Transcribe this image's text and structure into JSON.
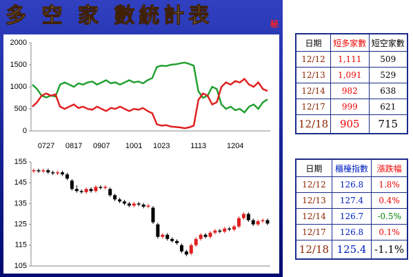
{
  "title": "多 空 家 數統計表",
  "badge": "秘",
  "chart_data": [
    {
      "type": "line",
      "categories": [
        null,
        null,
        null,
        "0727",
        null,
        null,
        null,
        null,
        null,
        "0817",
        null,
        null,
        null,
        null,
        null,
        "0907",
        null,
        null,
        null,
        null,
        null,
        null,
        "1001",
        null,
        null,
        null,
        null,
        null,
        "1023",
        null,
        null,
        null,
        null,
        null,
        null,
        null,
        "1113",
        null,
        null,
        null,
        null,
        null,
        null,
        null,
        "1204",
        null,
        null,
        null,
        null,
        null,
        null,
        null
      ],
      "series": [
        {
          "color": "#22a030",
          "values": [
            1050,
            950,
            800,
            760,
            800,
            780,
            1050,
            1100,
            1050,
            1000,
            1080,
            1050,
            1100,
            1120,
            1050,
            1100,
            1150,
            1080,
            1100,
            1050,
            1100,
            1150,
            1100,
            1120,
            1080,
            1150,
            1200,
            1450,
            1480,
            1470,
            1500,
            1510,
            1530,
            1550,
            1520,
            1480,
            900,
            750,
            800,
            1000,
            950,
            600,
            500,
            550,
            470,
            500,
            420,
            550,
            600,
            500,
            650,
            715
          ]
        },
        {
          "color": "#e02020",
          "values": [
            550,
            650,
            800,
            850,
            800,
            830,
            550,
            500,
            550,
            600,
            520,
            550,
            500,
            480,
            550,
            500,
            450,
            520,
            500,
            550,
            500,
            450,
            500,
            480,
            520,
            450,
            400,
            150,
            120,
            130,
            100,
            90,
            80,
            60,
            80,
            120,
            700,
            850,
            800,
            600,
            650,
            1000,
            1100,
            1050,
            1130,
            1100,
            1180,
            1050,
            1000,
            1100,
            950,
            905
          ]
        }
      ],
      "ylim": [
        0,
        2000
      ],
      "yticks": [
        0,
        500,
        1000,
        1500,
        2000
      ]
    },
    {
      "type": "candlestick",
      "up_color": "#e02020",
      "down_color": "#000000",
      "open": [
        150.5,
        151,
        150.5,
        151,
        150,
        149.5,
        150,
        149,
        146,
        142,
        141,
        140.5,
        142,
        141,
        143,
        142.5,
        142,
        139,
        137,
        136,
        135,
        134,
        135,
        134.5,
        133.5,
        133,
        125,
        119,
        120,
        118,
        117,
        115,
        112,
        111,
        115,
        118,
        120,
        119,
        121,
        122,
        121.5,
        123,
        122.5,
        124,
        128,
        130,
        127,
        125,
        126.5,
        127
      ],
      "high": [
        151.8,
        151.8,
        151.8,
        151.8,
        150.8,
        150.8,
        150.8,
        149.8,
        146.8,
        143.8,
        141.8,
        142.8,
        142.8,
        143.8,
        143.8,
        143.8,
        142.8,
        139.8,
        137.8,
        136.8,
        135.8,
        135.8,
        135.8,
        135.3,
        134.8,
        133.8,
        125.8,
        120.8,
        120.8,
        118.8,
        117.8,
        115.8,
        112.8,
        115.8,
        118.8,
        120.8,
        120.8,
        121.8,
        122.8,
        122.8,
        123.8,
        123.8,
        124.8,
        128.8,
        130.8,
        130.8,
        127.8,
        127.3,
        127.8,
        127.8
      ],
      "low": [
        149.7,
        149.7,
        149.7,
        149.2,
        148.7,
        148.7,
        148.2,
        146.2,
        141.2,
        140.2,
        139.7,
        139.7,
        140.2,
        140.2,
        141.7,
        141.7,
        138.2,
        136.2,
        135.2,
        134.2,
        133.2,
        133.2,
        133.7,
        132.7,
        132.7,
        125.2,
        118.2,
        118.2,
        117.2,
        116.2,
        115.2,
        111.2,
        109.7,
        110.2,
        114.2,
        117.2,
        118.2,
        118.2,
        120.2,
        120.7,
        120.7,
        121.7,
        121.7,
        123.2,
        127.2,
        126.2,
        124.2,
        124.2,
        125.7,
        124.6
      ],
      "close": [
        151,
        150.5,
        151,
        150,
        149.5,
        150,
        149,
        147,
        142,
        141,
        140.5,
        142,
        141,
        143,
        142.5,
        143,
        139,
        137,
        136,
        135,
        134,
        135,
        134.5,
        133.5,
        134,
        126,
        119,
        120,
        118,
        117,
        116,
        112,
        110.5,
        115,
        118,
        120,
        119,
        121,
        122,
        121.5,
        123,
        122.5,
        124,
        128,
        130,
        127,
        125,
        126.5,
        127,
        125.4
      ],
      "ylim": [
        105,
        155
      ],
      "yticks": [
        105,
        115,
        125,
        135,
        145,
        155
      ]
    }
  ],
  "tables": [
    {
      "header": [
        "日期",
        "短多家數",
        "短空家數"
      ],
      "rows": [
        [
          "12/12",
          "1,111",
          "509"
        ],
        [
          "12/13",
          "1,091",
          "529"
        ],
        [
          "12/14",
          "982",
          "638"
        ],
        [
          "12/17",
          "999",
          "621"
        ],
        [
          "12/18",
          "905",
          "715"
        ]
      ]
    },
    {
      "header": [
        "日期",
        "櫃檯指數",
        "漲跌幅"
      ],
      "rows": [
        [
          "12/12",
          "126.8",
          "1.8%"
        ],
        [
          "12/13",
          "127.4",
          "0.4%"
        ],
        [
          "12/14",
          "126.7",
          "-0.5%"
        ],
        [
          "12/17",
          "126.8",
          "0.1%"
        ],
        [
          "12/18",
          "125.4",
          "-1.1%"
        ]
      ]
    }
  ]
}
